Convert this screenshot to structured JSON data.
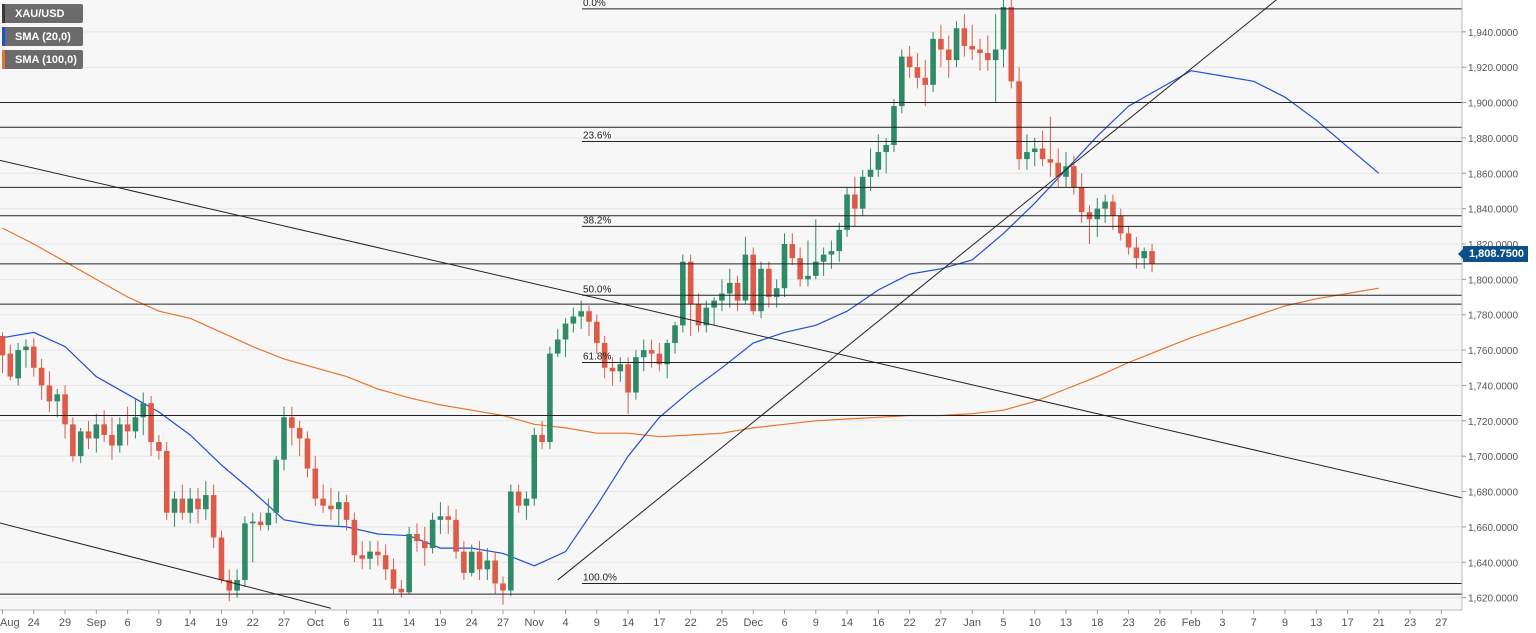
{
  "legend": [
    {
      "label": "XAU/USD",
      "color": "#4c4c4c"
    },
    {
      "label": "SMA (20,0)",
      "color": "#1f4fd6"
    },
    {
      "label": "SMA (100,0)",
      "color": "#e8742c"
    }
  ],
  "last_price_label": "1,808.7500",
  "colors": {
    "bull": "#2f8a68",
    "bear": "#de5b49",
    "sma20": "#1f4fd6",
    "sma100": "#e8742c",
    "grid": "#e6e6e6",
    "level": "#222222"
  },
  "chart_data": {
    "type": "candlestick",
    "y_range": [
      1613,
      1958
    ],
    "y_ticks": [
      "1,940.0000",
      "1,920.0000",
      "1,900.0000",
      "1,880.0000",
      "1,860.0000",
      "1,840.0000",
      "1,820.0000",
      "1,800.0000",
      "1,780.0000",
      "1,760.0000",
      "1,740.0000",
      "1,720.0000",
      "1,700.0000",
      "1,680.0000",
      "1,660.0000",
      "1,640.0000",
      "1,620.0000"
    ],
    "y_tick_values": [
      1940,
      1920,
      1900,
      1880,
      1860,
      1840,
      1820,
      1800,
      1780,
      1760,
      1740,
      1720,
      1700,
      1680,
      1660,
      1640,
      1620
    ],
    "x_labels": [
      "Aug",
      "24",
      "29",
      "Sep",
      "6",
      "9",
      "14",
      "19",
      "22",
      "27",
      "Oct",
      "6",
      "11",
      "14",
      "19",
      "24",
      "27",
      "Nov",
      "4",
      "9",
      "14",
      "17",
      "22",
      "25",
      "Dec",
      "6",
      "9",
      "14",
      "16",
      "22",
      "27",
      "Jan",
      "5",
      "10",
      "13",
      "18",
      "23",
      "26",
      "Feb",
      "3",
      "7",
      "9",
      "13",
      "17",
      "21",
      "23",
      "27"
    ],
    "x_label_bar_index": [
      0,
      4,
      8,
      12,
      16,
      20,
      24,
      28,
      32,
      36,
      40,
      44,
      48,
      52,
      56,
      60,
      64,
      68,
      72,
      76,
      80,
      84,
      88,
      92,
      96,
      100,
      104,
      108,
      112,
      116,
      120,
      124,
      128,
      132,
      136,
      140,
      144,
      148,
      152,
      156,
      160,
      164,
      168,
      172,
      176,
      180,
      184
    ],
    "fib_levels": [
      {
        "label": "0.0%",
        "value": 1953
      },
      {
        "label": "23.6%",
        "value": 1878
      },
      {
        "label": "38.2%",
        "value": 1830
      },
      {
        "label": "50.0%",
        "value": 1791
      },
      {
        "label": "61.8%",
        "value": 1753
      },
      {
        "label": "100.0%",
        "value": 1628
      }
    ],
    "horizontal_levels": [
      1900,
      1886,
      1852,
      1836,
      1808.75,
      1786,
      1723,
      1622
    ],
    "trendlines": [
      {
        "from": [
          -1,
          1868
        ],
        "to": [
          188,
          1675
        ]
      },
      {
        "from": [
          -1,
          1663
        ],
        "to": [
          42,
          1614
        ]
      },
      {
        "from": [
          71,
          1630
        ],
        "to": [
          164,
          1962
        ]
      }
    ],
    "sma20": [
      [
        0,
        1767
      ],
      [
        4,
        1770
      ],
      [
        8,
        1762
      ],
      [
        12,
        1745
      ],
      [
        16,
        1735
      ],
      [
        20,
        1725
      ],
      [
        24,
        1712
      ],
      [
        28,
        1695
      ],
      [
        32,
        1680
      ],
      [
        36,
        1664
      ],
      [
        40,
        1661
      ],
      [
        44,
        1660
      ],
      [
        48,
        1656
      ],
      [
        52,
        1655
      ],
      [
        56,
        1648
      ],
      [
        60,
        1648
      ],
      [
        64,
        1645
      ],
      [
        68,
        1638
      ],
      [
        72,
        1646
      ],
      [
        76,
        1672
      ],
      [
        80,
        1700
      ],
      [
        84,
        1722
      ],
      [
        88,
        1737
      ],
      [
        92,
        1750
      ],
      [
        96,
        1764
      ],
      [
        100,
        1770
      ],
      [
        104,
        1774
      ],
      [
        108,
        1782
      ],
      [
        112,
        1794
      ],
      [
        116,
        1803
      ],
      [
        120,
        1806
      ],
      [
        124,
        1811
      ],
      [
        128,
        1826
      ],
      [
        132,
        1843
      ],
      [
        136,
        1862
      ],
      [
        140,
        1881
      ],
      [
        144,
        1898
      ],
      [
        148,
        1908
      ],
      [
        152,
        1918
      ],
      [
        156,
        1915
      ],
      [
        160,
        1912
      ],
      [
        164,
        1903
      ],
      [
        168,
        1890
      ],
      [
        172,
        1875
      ],
      [
        176,
        1860
      ]
    ],
    "sma100": [
      [
        0,
        1829
      ],
      [
        4,
        1820
      ],
      [
        8,
        1810
      ],
      [
        12,
        1800
      ],
      [
        16,
        1790
      ],
      [
        20,
        1782
      ],
      [
        24,
        1778
      ],
      [
        28,
        1770
      ],
      [
        32,
        1762
      ],
      [
        36,
        1755
      ],
      [
        40,
        1750
      ],
      [
        44,
        1745
      ],
      [
        48,
        1738
      ],
      [
        52,
        1733
      ],
      [
        56,
        1729
      ],
      [
        60,
        1726
      ],
      [
        64,
        1723
      ],
      [
        68,
        1718
      ],
      [
        72,
        1716
      ],
      [
        76,
        1713
      ],
      [
        80,
        1713
      ],
      [
        84,
        1711
      ],
      [
        88,
        1712
      ],
      [
        92,
        1713
      ],
      [
        96,
        1716
      ],
      [
        100,
        1718
      ],
      [
        104,
        1720
      ],
      [
        108,
        1721
      ],
      [
        112,
        1722
      ],
      [
        116,
        1723
      ],
      [
        120,
        1723
      ],
      [
        124,
        1724
      ],
      [
        128,
        1726
      ],
      [
        132,
        1731
      ],
      [
        136,
        1738
      ],
      [
        140,
        1745
      ],
      [
        144,
        1753
      ],
      [
        148,
        1760
      ],
      [
        152,
        1767
      ],
      [
        156,
        1773
      ],
      [
        160,
        1779
      ],
      [
        164,
        1785
      ],
      [
        168,
        1789
      ],
      [
        172,
        1792
      ],
      [
        176,
        1795
      ]
    ],
    "ohlc": [
      [
        1768,
        1770,
        1747,
        1757
      ],
      [
        1758,
        1763,
        1743,
        1745
      ],
      [
        1744,
        1764,
        1740,
        1760
      ],
      [
        1760,
        1766,
        1750,
        1762
      ],
      [
        1762,
        1767,
        1745,
        1750
      ],
      [
        1750,
        1755,
        1732,
        1740
      ],
      [
        1740,
        1748,
        1725,
        1731
      ],
      [
        1731,
        1738,
        1722,
        1735
      ],
      [
        1735,
        1740,
        1710,
        1718
      ],
      [
        1718,
        1722,
        1697,
        1700
      ],
      [
        1700,
        1716,
        1696,
        1714
      ],
      [
        1714,
        1720,
        1704,
        1710
      ],
      [
        1710,
        1724,
        1702,
        1718
      ],
      [
        1718,
        1726,
        1708,
        1712
      ],
      [
        1712,
        1722,
        1698,
        1706
      ],
      [
        1706,
        1722,
        1702,
        1718
      ],
      [
        1718,
        1728,
        1706,
        1714
      ],
      [
        1714,
        1732,
        1710,
        1722
      ],
      [
        1722,
        1736,
        1712,
        1730
      ],
      [
        1730,
        1734,
        1700,
        1708
      ],
      [
        1708,
        1712,
        1698,
        1703
      ],
      [
        1703,
        1708,
        1664,
        1668
      ],
      [
        1668,
        1680,
        1660,
        1676
      ],
      [
        1676,
        1684,
        1664,
        1668
      ],
      [
        1668,
        1682,
        1662,
        1676
      ],
      [
        1676,
        1682,
        1662,
        1670
      ],
      [
        1670,
        1686,
        1664,
        1678
      ],
      [
        1678,
        1684,
        1648,
        1654
      ],
      [
        1654,
        1658,
        1628,
        1630
      ],
      [
        1630,
        1636,
        1618,
        1624
      ],
      [
        1624,
        1636,
        1620,
        1630
      ],
      [
        1630,
        1666,
        1626,
        1662
      ],
      [
        1662,
        1668,
        1640,
        1663
      ],
      [
        1663,
        1668,
        1658,
        1661
      ],
      [
        1661,
        1676,
        1658,
        1668
      ],
      [
        1668,
        1700,
        1662,
        1698
      ],
      [
        1698,
        1728,
        1692,
        1722
      ],
      [
        1722,
        1728,
        1706,
        1716
      ],
      [
        1716,
        1720,
        1700,
        1710
      ],
      [
        1710,
        1714,
        1688,
        1693
      ],
      [
        1693,
        1700,
        1672,
        1676
      ],
      [
        1676,
        1684,
        1668,
        1672
      ],
      [
        1672,
        1682,
        1664,
        1670
      ],
      [
        1670,
        1680,
        1660,
        1674
      ],
      [
        1674,
        1678,
        1658,
        1664
      ],
      [
        1664,
        1668,
        1640,
        1644
      ],
      [
        1644,
        1652,
        1636,
        1642
      ],
      [
        1642,
        1652,
        1636,
        1646
      ],
      [
        1646,
        1652,
        1638,
        1644
      ],
      [
        1644,
        1650,
        1630,
        1636
      ],
      [
        1636,
        1642,
        1622,
        1625
      ],
      [
        1625,
        1630,
        1620,
        1623
      ],
      [
        1623,
        1660,
        1622,
        1656
      ],
      [
        1656,
        1662,
        1646,
        1652
      ],
      [
        1652,
        1660,
        1638,
        1648
      ],
      [
        1648,
        1668,
        1645,
        1664
      ],
      [
        1664,
        1674,
        1656,
        1666
      ],
      [
        1666,
        1672,
        1656,
        1664
      ],
      [
        1664,
        1670,
        1642,
        1646
      ],
      [
        1646,
        1652,
        1630,
        1634
      ],
      [
        1634,
        1650,
        1632,
        1646
      ],
      [
        1646,
        1652,
        1630,
        1636
      ],
      [
        1636,
        1648,
        1630,
        1641
      ],
      [
        1641,
        1646,
        1622,
        1628
      ],
      [
        1628,
        1632,
        1616,
        1624
      ],
      [
        1624,
        1684,
        1621,
        1680
      ],
      [
        1680,
        1684,
        1668,
        1672
      ],
      [
        1672,
        1680,
        1664,
        1676
      ],
      [
        1676,
        1716,
        1672,
        1712
      ],
      [
        1712,
        1720,
        1704,
        1708
      ],
      [
        1708,
        1762,
        1704,
        1758
      ],
      [
        1758,
        1772,
        1756,
        1766
      ],
      [
        1766,
        1778,
        1756,
        1775
      ],
      [
        1775,
        1784,
        1770,
        1779
      ],
      [
        1779,
        1788,
        1772,
        1782
      ],
      [
        1782,
        1785,
        1768,
        1776
      ],
      [
        1776,
        1780,
        1758,
        1764
      ],
      [
        1764,
        1768,
        1744,
        1750
      ],
      [
        1750,
        1756,
        1740,
        1748
      ],
      [
        1748,
        1756,
        1742,
        1752
      ],
      [
        1752,
        1756,
        1724,
        1736
      ],
      [
        1736,
        1760,
        1732,
        1756
      ],
      [
        1756,
        1766,
        1748,
        1760
      ],
      [
        1760,
        1766,
        1750,
        1758
      ],
      [
        1758,
        1764,
        1748,
        1752
      ],
      [
        1752,
        1766,
        1744,
        1764
      ],
      [
        1764,
        1776,
        1758,
        1774
      ],
      [
        1774,
        1814,
        1770,
        1810
      ],
      [
        1810,
        1814,
        1768,
        1786
      ],
      [
        1786,
        1792,
        1770,
        1774
      ],
      [
        1774,
        1788,
        1770,
        1784
      ],
      [
        1784,
        1790,
        1774,
        1788
      ],
      [
        1788,
        1800,
        1782,
        1792
      ],
      [
        1792,
        1806,
        1784,
        1798
      ],
      [
        1798,
        1802,
        1782,
        1788
      ],
      [
        1788,
        1824,
        1786,
        1814
      ],
      [
        1814,
        1818,
        1780,
        1782
      ],
      [
        1782,
        1810,
        1778,
        1806
      ],
      [
        1806,
        1810,
        1784,
        1790
      ],
      [
        1790,
        1800,
        1784,
        1795
      ],
      [
        1795,
        1826,
        1790,
        1820
      ],
      [
        1820,
        1826,
        1808,
        1812
      ],
      [
        1812,
        1818,
        1796,
        1800
      ],
      [
        1800,
        1822,
        1796,
        1802
      ],
      [
        1802,
        1834,
        1800,
        1810
      ],
      [
        1810,
        1818,
        1802,
        1814
      ],
      [
        1814,
        1822,
        1806,
        1816
      ],
      [
        1816,
        1832,
        1810,
        1828
      ],
      [
        1828,
        1852,
        1824,
        1848
      ],
      [
        1848,
        1858,
        1830,
        1840
      ],
      [
        1840,
        1862,
        1836,
        1858
      ],
      [
        1858,
        1874,
        1850,
        1862
      ],
      [
        1862,
        1882,
        1858,
        1872
      ],
      [
        1872,
        1880,
        1860,
        1876
      ],
      [
        1876,
        1902,
        1872,
        1898
      ],
      [
        1898,
        1930,
        1894,
        1926
      ],
      [
        1926,
        1932,
        1914,
        1920
      ],
      [
        1920,
        1928,
        1908,
        1914
      ],
      [
        1914,
        1924,
        1898,
        1910
      ],
      [
        1910,
        1940,
        1906,
        1936
      ],
      [
        1936,
        1944,
        1920,
        1930
      ],
      [
        1930,
        1938,
        1914,
        1924
      ],
      [
        1924,
        1946,
        1920,
        1942
      ],
      [
        1942,
        1950,
        1926,
        1932
      ],
      [
        1932,
        1944,
        1924,
        1930
      ],
      [
        1930,
        1936,
        1918,
        1928
      ],
      [
        1928,
        1938,
        1918,
        1924
      ],
      [
        1924,
        1950,
        1900,
        1930
      ],
      [
        1930,
        1960,
        1920,
        1954
      ],
      [
        1954,
        1958,
        1908,
        1912
      ],
      [
        1912,
        1920,
        1862,
        1868
      ],
      [
        1868,
        1882,
        1862,
        1872
      ],
      [
        1872,
        1880,
        1864,
        1874
      ],
      [
        1874,
        1884,
        1864,
        1868
      ],
      [
        1868,
        1892,
        1858,
        1866
      ],
      [
        1866,
        1874,
        1852,
        1858
      ],
      [
        1858,
        1872,
        1852,
        1864
      ],
      [
        1864,
        1870,
        1848,
        1852
      ],
      [
        1852,
        1860,
        1832,
        1838
      ],
      [
        1838,
        1842,
        1820,
        1834
      ],
      [
        1834,
        1846,
        1824,
        1840
      ],
      [
        1840,
        1848,
        1832,
        1844
      ],
      [
        1844,
        1848,
        1828,
        1836
      ],
      [
        1836,
        1840,
        1822,
        1826
      ],
      [
        1826,
        1830,
        1814,
        1818
      ],
      [
        1818,
        1824,
        1806,
        1812
      ],
      [
        1812,
        1818,
        1806,
        1816
      ],
      [
        1816,
        1820,
        1804,
        1808.75
      ]
    ]
  }
}
